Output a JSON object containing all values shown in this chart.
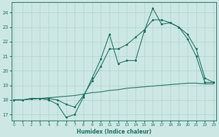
{
  "line1_x": [
    0,
    1,
    2,
    3,
    4,
    5,
    6,
    7,
    8,
    9,
    10,
    11,
    12,
    13,
    14,
    15,
    16,
    17,
    18,
    19,
    20,
    21,
    22,
    23
  ],
  "line1_y": [
    18,
    18,
    18.1,
    18.1,
    18,
    17.7,
    16.8,
    17,
    18.2,
    19.5,
    20.8,
    22.5,
    20.5,
    20.7,
    20.7,
    22.7,
    24.3,
    23.2,
    23.3,
    23.0,
    22.2,
    21.0,
    19.2,
    19.2
  ],
  "line2_x": [
    0,
    1,
    2,
    3,
    4,
    5,
    6,
    7,
    8,
    9,
    10,
    11,
    12,
    13,
    14,
    15,
    16,
    17,
    18,
    19,
    20,
    21,
    22,
    23
  ],
  "line2_y": [
    18.0,
    18.0,
    18.05,
    18.1,
    18.15,
    18.2,
    18.25,
    18.3,
    18.4,
    18.5,
    18.55,
    18.65,
    18.7,
    18.8,
    18.85,
    18.9,
    18.95,
    19.0,
    19.05,
    19.1,
    19.15,
    19.15,
    19.1,
    19.1
  ],
  "line3_x": [
    0,
    1,
    2,
    3,
    4,
    5,
    6,
    7,
    8,
    9,
    10,
    11,
    12,
    13,
    14,
    15,
    16,
    17,
    18,
    19,
    20,
    21,
    22,
    23
  ],
  "line3_y": [
    18,
    18,
    18.1,
    18.1,
    18.1,
    18.0,
    17.7,
    17.5,
    18.3,
    19.3,
    20.3,
    21.5,
    21.5,
    21.8,
    22.3,
    22.8,
    23.5,
    23.5,
    23.3,
    23.0,
    22.5,
    21.5,
    19.5,
    19.2
  ],
  "bg_color": "#cde8e4",
  "grid_color": "#aed0cc",
  "line_color": "#1e6e60",
  "xlim": [
    -0.3,
    23.3
  ],
  "ylim": [
    16.6,
    24.7
  ],
  "yticks": [
    17,
    18,
    19,
    20,
    21,
    22,
    23,
    24
  ],
  "xticks": [
    0,
    1,
    2,
    3,
    4,
    5,
    6,
    7,
    8,
    9,
    10,
    11,
    12,
    13,
    14,
    15,
    16,
    17,
    18,
    19,
    20,
    21,
    22,
    23
  ],
  "xlabel": "Humidex (Indice chaleur)",
  "marker_size": 2.5
}
